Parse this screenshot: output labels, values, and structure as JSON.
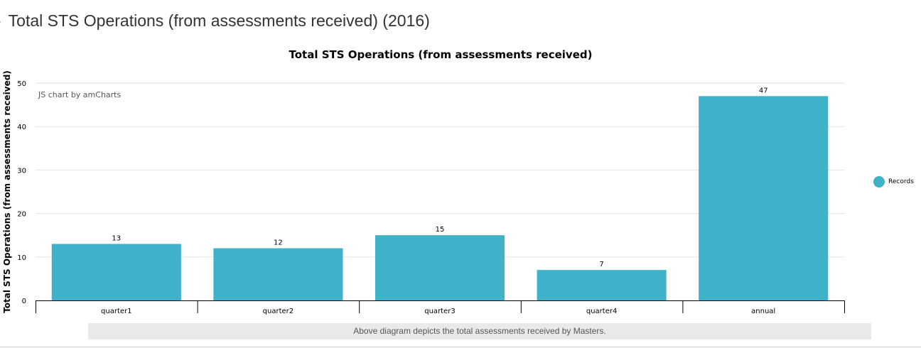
{
  "panel": {
    "title": "Total STS Operations (from assessments received) (2016)",
    "caption": "Above diagram depicts the total assessments received by Masters."
  },
  "chart_data": {
    "type": "bar",
    "title": "Total STS Operations (from assessments received)",
    "xlabel": "",
    "ylabel": "Total STS Operations (from assessments received)",
    "credit": "JS chart by amCharts",
    "categories": [
      "quarter1",
      "quarter2",
      "quarter3",
      "quarter4",
      "annual"
    ],
    "series": [
      {
        "name": "Records",
        "values": [
          13,
          12,
          15,
          7,
          47
        ],
        "color": "#3fb1c8"
      }
    ],
    "ylim": [
      0,
      50
    ],
    "yticks": [
      0,
      10,
      20,
      30,
      40,
      50
    ],
    "grid": true,
    "legend_position": "right",
    "data_labels": true
  }
}
